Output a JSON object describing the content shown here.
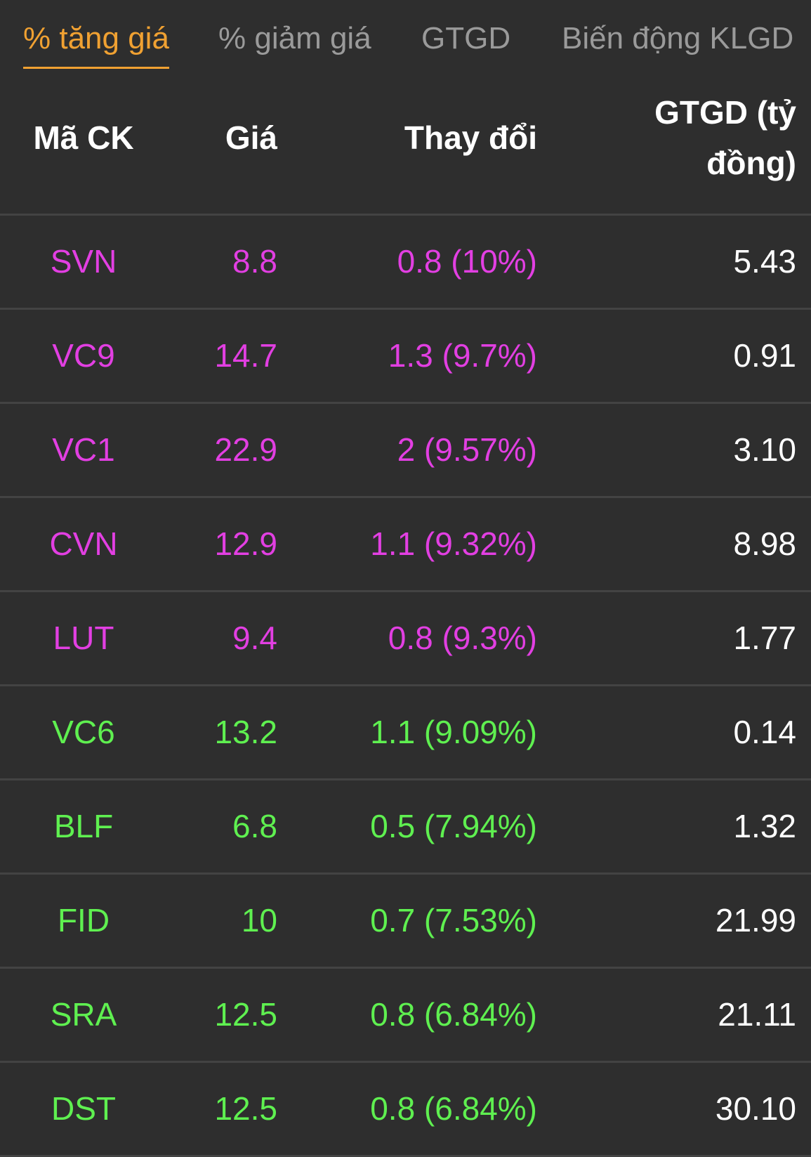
{
  "colors": {
    "ceiling": "#e23fe2",
    "up": "#5ff050",
    "active_tab": "#f0a132",
    "inactive_tab": "#9a9a9a"
  },
  "tabs": [
    {
      "label": "% tăng giá",
      "active": true
    },
    {
      "label": "% giảm giá",
      "active": false
    },
    {
      "label": "GTGD",
      "active": false
    },
    {
      "label": "Biến động KLGD",
      "active": false
    }
  ],
  "table": {
    "headers": {
      "symbol": "Mã CK",
      "price": "Giá",
      "change": "Thay đổi",
      "value": "GTGD (tỷ đồng)"
    },
    "rows": [
      {
        "symbol": "SVN",
        "price": "8.8",
        "change": "0.8 (10%)",
        "value": "5.43",
        "status": "ceiling"
      },
      {
        "symbol": "VC9",
        "price": "14.7",
        "change": "1.3 (9.7%)",
        "value": "0.91",
        "status": "ceiling"
      },
      {
        "symbol": "VC1",
        "price": "22.9",
        "change": "2 (9.57%)",
        "value": "3.10",
        "status": "ceiling"
      },
      {
        "symbol": "CVN",
        "price": "12.9",
        "change": "1.1 (9.32%)",
        "value": "8.98",
        "status": "ceiling"
      },
      {
        "symbol": "LUT",
        "price": "9.4",
        "change": "0.8 (9.3%)",
        "value": "1.77",
        "status": "ceiling"
      },
      {
        "symbol": "VC6",
        "price": "13.2",
        "change": "1.1 (9.09%)",
        "value": "0.14",
        "status": "up"
      },
      {
        "symbol": "BLF",
        "price": "6.8",
        "change": "0.5 (7.94%)",
        "value": "1.32",
        "status": "up"
      },
      {
        "symbol": "FID",
        "price": "10",
        "change": "0.7 (7.53%)",
        "value": "21.99",
        "status": "up"
      },
      {
        "symbol": "SRA",
        "price": "12.5",
        "change": "0.8 (6.84%)",
        "value": "21.11",
        "status": "up"
      },
      {
        "symbol": "DST",
        "price": "12.5",
        "change": "0.8 (6.84%)",
        "value": "30.10",
        "status": "up"
      }
    ]
  }
}
